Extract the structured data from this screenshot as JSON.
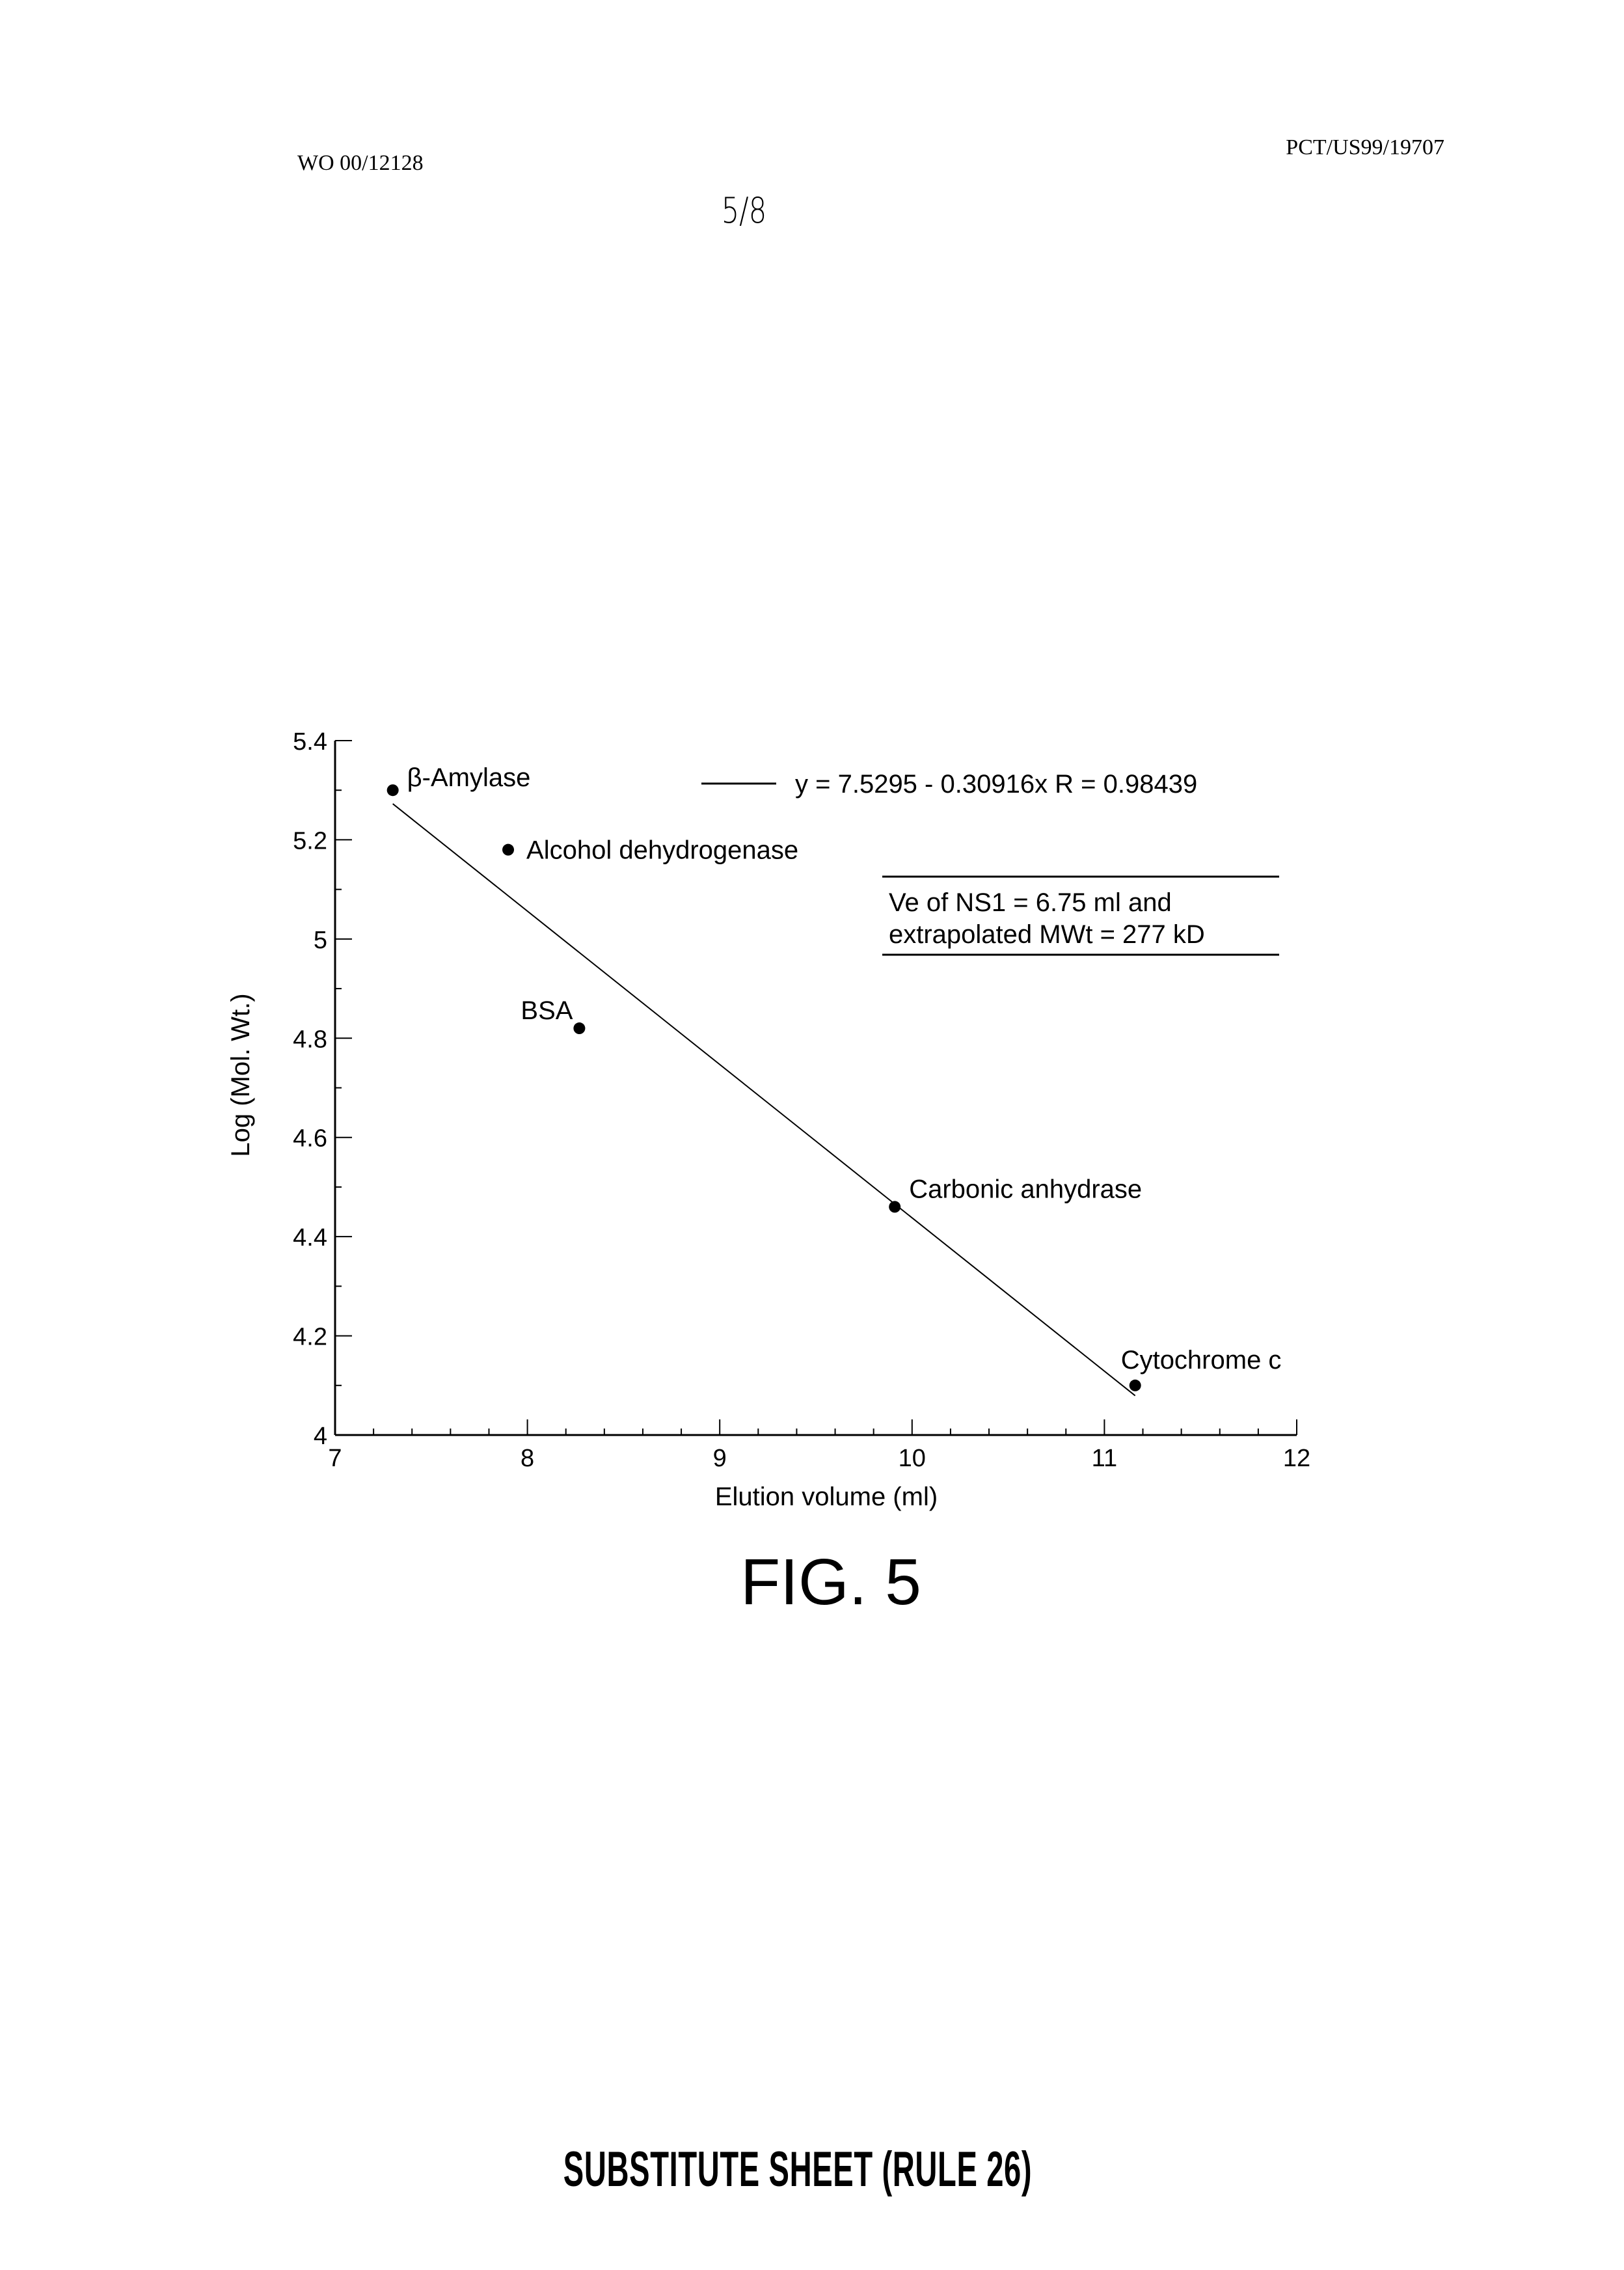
{
  "header": {
    "publication_number": "WO 00/12128",
    "application_number": "PCT/US99/19707",
    "sheet_number": "5/8"
  },
  "footer": {
    "text": "SUBSTITUTE SHEET (RULE 26)"
  },
  "figure": {
    "caption": "FIG. 5"
  },
  "chart_data": {
    "type": "scatter",
    "xlabel": "Elution volume (ml)",
    "ylabel": "Log (Mol. Wt.)",
    "xlim": [
      7,
      12
    ],
    "ylim": [
      4,
      5.4
    ],
    "xticks": [
      "7",
      "8",
      "9",
      "10",
      "11",
      "12"
    ],
    "yticks": [
      "4",
      "4.2",
      "4.4",
      "4.6",
      "4.8",
      "5",
      "5.2",
      "5.4"
    ],
    "grid": false,
    "points": [
      {
        "label": "β-Amylase",
        "x": 7.3,
        "y": 5.3
      },
      {
        "label": "Alcohol dehydrogenase",
        "x": 7.9,
        "y": 5.18
      },
      {
        "label": "BSA",
        "x": 8.27,
        "y": 4.82
      },
      {
        "label": "Carbonic anhydrase",
        "x": 9.91,
        "y": 4.46
      },
      {
        "label": "Cytochrome c",
        "x": 11.16,
        "y": 4.1
      }
    ],
    "fit_line": {
      "intercept": 7.5295,
      "slope": -0.30916,
      "x_range": [
        7.3,
        11.16
      ],
      "legend": "y = 7.5295 - 0.30916x R = 0.98439"
    },
    "annotation": {
      "line1": "Ve of NS1 = 6.75 ml and",
      "line2": "extrapolated MWt = 277 kD"
    },
    "legend_placement": "top-right"
  }
}
